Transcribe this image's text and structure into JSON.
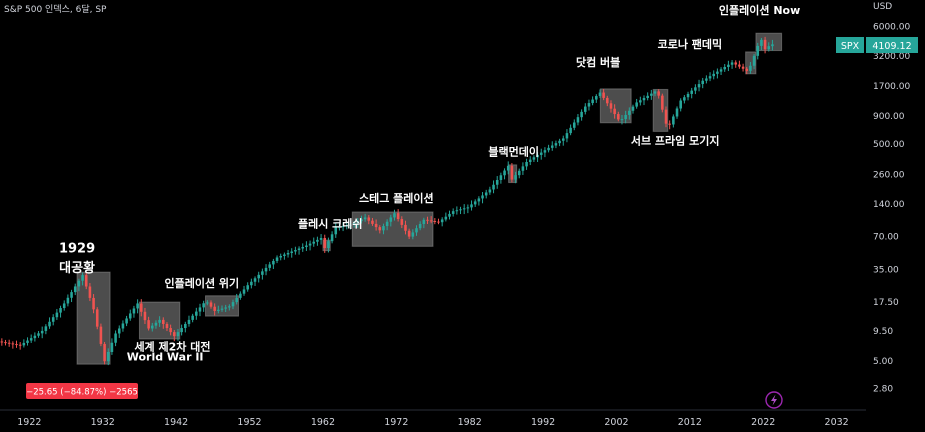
{
  "header": {
    "title": "S&P 500 인덱스, 6달, SP",
    "currency": "USD"
  },
  "price_label": {
    "symbol": "SPX",
    "value": "4109.12",
    "color": "#26a69a"
  },
  "drawdown_label": {
    "text": "−25.65 (−84.87%) −2565",
    "color": "#f23645"
  },
  "colors": {
    "up": "#26a69a",
    "down": "#ef5350",
    "zone": "#8c8c8c",
    "background": "#000000"
  },
  "bottom_icon": "lightning-icon",
  "chart_data": {
    "type": "candlestick",
    "title": "S&P 500 인덱스, 6달, SP",
    "y_scale": "log",
    "x_range": [
      1918,
      2036
    ],
    "y_range": [
      2.2,
      8500
    ],
    "x_ticks": [
      "1922",
      "1932",
      "1942",
      "1952",
      "1962",
      "1972",
      "1982",
      "1992",
      "2002",
      "2012",
      "2022",
      "2032"
    ],
    "y_ticks": [
      "6000.00",
      "3200.00",
      "1700.00",
      "900.00",
      "500.00",
      "260.00",
      "140.00",
      "70.00",
      "35.00",
      "17.50",
      "9.50",
      "5.00",
      "2.80"
    ],
    "price_path": [
      [
        1918,
        7.6
      ],
      [
        1921,
        7.0
      ],
      [
        1924,
        9.5
      ],
      [
        1927,
        17
      ],
      [
        1929.5,
        31
      ],
      [
        1931,
        15
      ],
      [
        1932.5,
        5.0
      ],
      [
        1934,
        9
      ],
      [
        1937,
        17
      ],
      [
        1938.5,
        10
      ],
      [
        1940,
        12
      ],
      [
        1942,
        8.5
      ],
      [
        1944,
        12
      ],
      [
        1946.3,
        18
      ],
      [
        1947.5,
        14.5
      ],
      [
        1949.5,
        16
      ],
      [
        1952,
        25
      ],
      [
        1956,
        45
      ],
      [
        1960,
        58
      ],
      [
        1962,
        68
      ],
      [
        1962.5,
        55
      ],
      [
        1964,
        85
      ],
      [
        1966,
        90
      ],
      [
        1968,
        105
      ],
      [
        1970,
        80
      ],
      [
        1972,
        115
      ],
      [
        1974,
        70
      ],
      [
        1976,
        100
      ],
      [
        1978,
        95
      ],
      [
        1980,
        120
      ],
      [
        1982,
        130
      ],
      [
        1985,
        190
      ],
      [
        1987.6,
        320
      ],
      [
        1987.9,
        230
      ],
      [
        1990,
        340
      ],
      [
        1995,
        560
      ],
      [
        1998,
        1100
      ],
      [
        2000,
        1480
      ],
      [
        2002.7,
        800
      ],
      [
        2005,
        1200
      ],
      [
        2007.8,
        1560
      ],
      [
        2009.2,
        680
      ],
      [
        2011,
        1250
      ],
      [
        2014,
        1900
      ],
      [
        2018,
        2800
      ],
      [
        2020.2,
        2300
      ],
      [
        2021.9,
        4700
      ],
      [
        2022.5,
        3700
      ],
      [
        2023.3,
        4109.12
      ]
    ],
    "annotations": [
      {
        "text": "1929",
        "x": 1928.5,
        "y": 50
      },
      {
        "text": "대공황",
        "x": 1928.5,
        "y": 33
      },
      {
        "text": "세계 제2차 대전",
        "x": 1941.5,
        "y": 6.3
      },
      {
        "text": "World War II",
        "x": 1940.5,
        "y": 5.1
      },
      {
        "text": "인플레이션 위기",
        "x": 1945.5,
        "y": 24
      },
      {
        "text": "플레시 크레쉬",
        "x": 1963,
        "y": 85
      },
      {
        "text": "스테그 플레이션",
        "x": 1972,
        "y": 145
      },
      {
        "text": "블랙먼데이",
        "x": 1988,
        "y": 390
      },
      {
        "text": "닷컴 버블",
        "x": 1999.5,
        "y": 2600
      },
      {
        "text": "서브 프라임 모기지",
        "x": 2010,
        "y": 490
      },
      {
        "text": "코로나 팬데믹",
        "x": 2012,
        "y": 3800
      },
      {
        "text": "인플레이션 Now",
        "x": 2021.5,
        "y": 7800
      }
    ],
    "shaded_zones": [
      {
        "x": [
          1928.5,
          1933
        ],
        "y": [
          4.7,
          33
        ]
      },
      {
        "x": [
          1937,
          1942.5
        ],
        "y": [
          8.0,
          17.5
        ]
      },
      {
        "x": [
          1946,
          1950.5
        ],
        "y": [
          13,
          20
        ]
      },
      {
        "x": [
          1962,
          1963
        ],
        "y": [
          52,
          65
        ]
      },
      {
        "x": [
          1966,
          1977
        ],
        "y": [
          57,
          118
        ]
      },
      {
        "x": [
          1987.3,
          1988.4
        ],
        "y": [
          220,
          320
        ]
      },
      {
        "x": [
          1999.8,
          2004
        ],
        "y": [
          780,
          1600
        ]
      },
      {
        "x": [
          2007,
          2009
        ],
        "y": [
          650,
          1580
        ]
      },
      {
        "x": [
          2019.6,
          2021
        ],
        "y": [
          2200,
          3500
        ]
      },
      {
        "x": [
          2021,
          2024.5
        ],
        "y": [
          3600,
          5200
        ]
      }
    ]
  }
}
